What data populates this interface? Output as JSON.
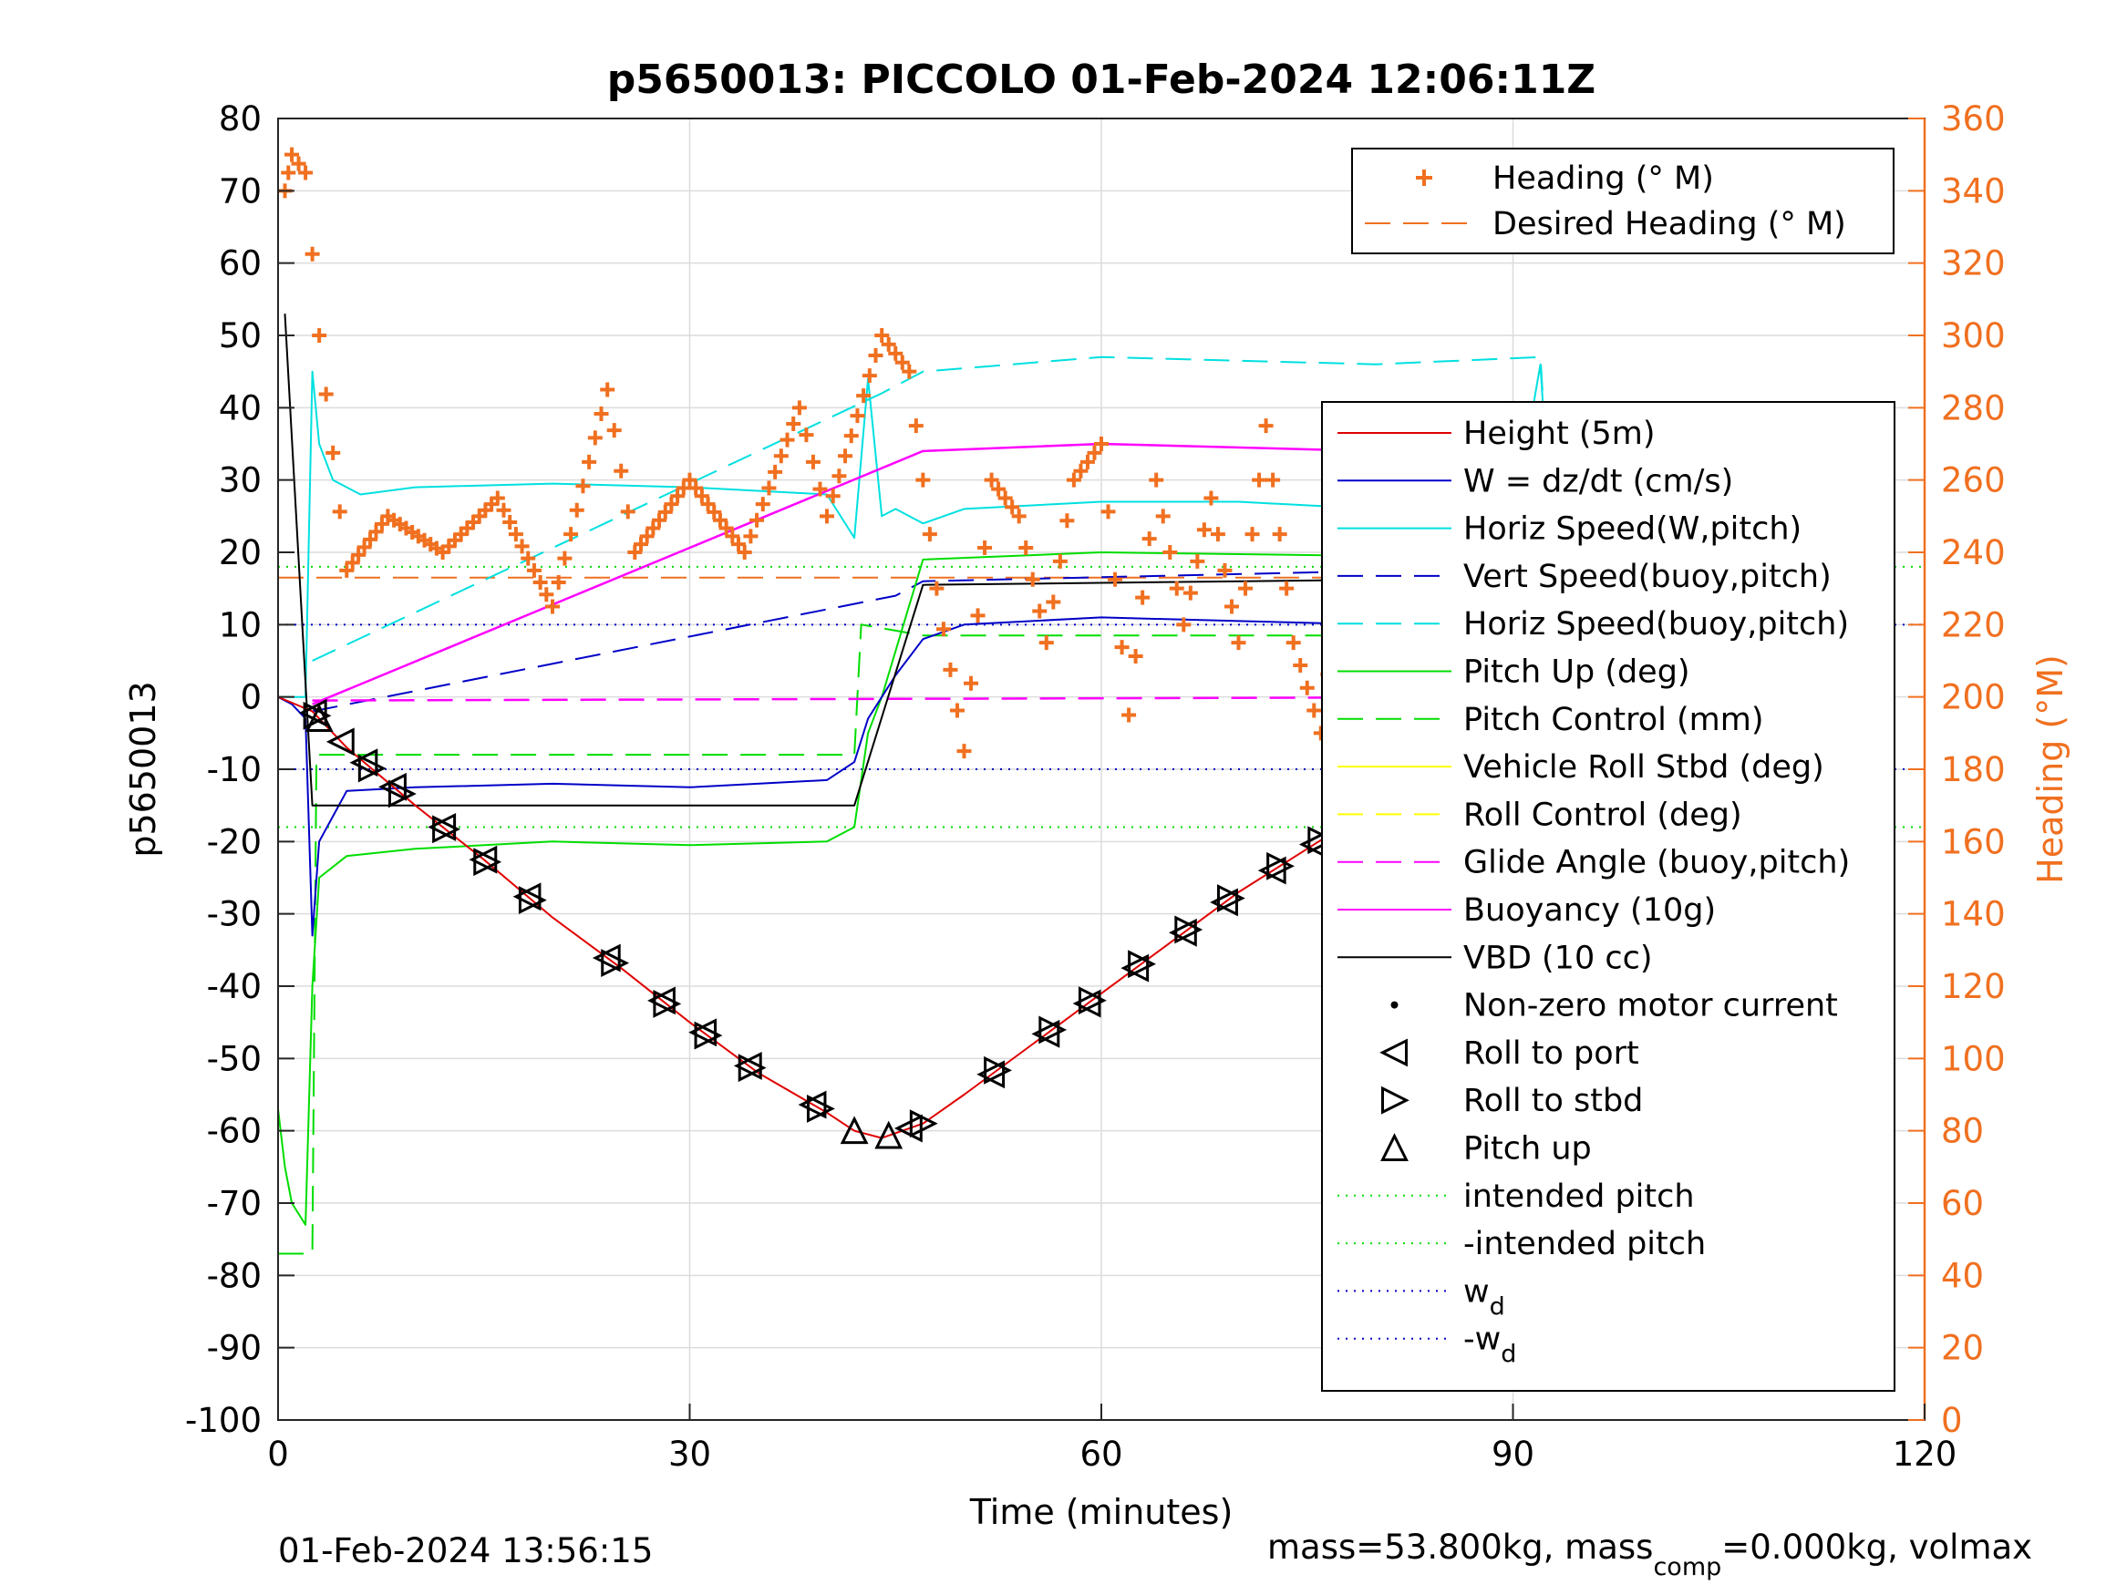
{
  "figure": {
    "title": "p5650013: PICCOLO 01-Feb-2024 12:06:11Z",
    "footer_left": "01-Feb-2024 13:56:15",
    "footer_right_parts": [
      "mass=53.800kg, mass",
      "comp",
      "=0.000kg, volmax"
    ]
  },
  "colors": {
    "heading": "#f07020",
    "height": "#e00000",
    "w": "#0000c8",
    "horiz_w": "#00e0e0",
    "vert_buoy": "#0000c8",
    "horiz_buoy": "#00e0e0",
    "pitch": "#00dd00",
    "pitch_control": "#00dd00",
    "roll": "#ffff00",
    "roll_control": "#ffff00",
    "glide": "#ff00ff",
    "buoyancy": "#ff00ff",
    "vbd": "#000000",
    "grid": "#dcdcdc"
  },
  "chart_data": {
    "type": "line",
    "xlabel": "Time (minutes)",
    "ylabel_left": "p5650013",
    "ylabel_right": "Heading (°M)",
    "xlim": [
      0,
      120
    ],
    "ylim_left": [
      -100,
      80
    ],
    "ylim_right": [
      0,
      360
    ],
    "xticks": [
      0,
      30,
      60,
      90,
      120
    ],
    "yticks_left": [
      80,
      70,
      60,
      50,
      40,
      30,
      20,
      10,
      0,
      -10,
      -20,
      -30,
      -40,
      -50,
      -60,
      -70,
      -80,
      -90,
      -100
    ],
    "yticks_right": [
      360,
      340,
      320,
      300,
      280,
      260,
      240,
      220,
      200,
      180,
      160,
      140,
      120,
      100,
      80,
      60,
      40,
      20,
      0
    ],
    "grid": true,
    "legend_heading": {
      "placement": "top-right",
      "entries": [
        "Heading (° M)",
        "Desired Heading (° M)"
      ]
    },
    "legend_main": {
      "placement": "right",
      "entries": [
        {
          "text": "Height (5m)",
          "key": "height",
          "style": "solid"
        },
        {
          "text": "W = dz/dt (cm/s)",
          "key": "w",
          "style": "solid"
        },
        {
          "text": "Horiz Speed(W,pitch)",
          "key": "horiz_w",
          "style": "solid"
        },
        {
          "text": "Vert Speed(buoy,pitch)",
          "key": "vert_buoy",
          "style": "dashed"
        },
        {
          "text": "Horiz Speed(buoy,pitch)",
          "key": "horiz_buoy",
          "style": "dashed"
        },
        {
          "text": "Pitch Up (deg)",
          "key": "pitch",
          "style": "solid"
        },
        {
          "text": "Pitch Control (mm)",
          "key": "pitch_control",
          "style": "dashed"
        },
        {
          "text": "Vehicle Roll Stbd (deg)",
          "key": "roll",
          "style": "solid"
        },
        {
          "text": "Roll Control (deg)",
          "key": "roll_control",
          "style": "dashed"
        },
        {
          "text": "Glide Angle (buoy,pitch)",
          "key": "glide",
          "style": "dashed"
        },
        {
          "text": "Buoyancy (10g)",
          "key": "buoyancy",
          "style": "solid"
        },
        {
          "text": "VBD (10 cc)",
          "key": "vbd",
          "style": "solid"
        },
        {
          "text": "Non-zero motor current",
          "key": "motor",
          "style": "dot"
        },
        {
          "text": "Roll to port",
          "key": "port",
          "style": "tri-left"
        },
        {
          "text": "Roll to stbd",
          "key": "stbd",
          "style": "tri-right"
        },
        {
          "text": "Pitch up",
          "key": "pitchup",
          "style": "tri-up"
        },
        {
          "text": "intended pitch",
          "key": "ip",
          "style": "dotted-green"
        },
        {
          "text": "-intended pitch",
          "key": "nip",
          "style": "dotted-green"
        },
        {
          "text": "w",
          "sub": "d",
          "key": "wd",
          "style": "dotted-blue"
        },
        {
          "text": "-w",
          "sub": "d",
          "key": "nwd",
          "style": "dotted-blue"
        }
      ]
    },
    "series": [
      {
        "name": "Height (5m)",
        "x": [
          0,
          2.5,
          5,
          10,
          15,
          20,
          25,
          30,
          35,
          40,
          42,
          44,
          47,
          50,
          55,
          60,
          65,
          70,
          75,
          80,
          85,
          90,
          93.5
        ],
        "y": [
          0,
          -2,
          -7,
          -15,
          -22.5,
          -30.5,
          -37.5,
          -45,
          -52,
          -57.5,
          -60,
          -61,
          -59,
          -55,
          -48,
          -41,
          -34,
          -27,
          -21,
          -15,
          -9,
          -3.5,
          0
        ]
      },
      {
        "name": "W = dz/dt (cm/s)",
        "x": [
          0,
          1,
          2,
          2.5,
          3,
          5,
          10,
          20,
          30,
          40,
          42,
          43,
          45,
          47,
          50,
          60,
          70,
          80,
          90,
          92,
          93.5
        ],
        "y": [
          0,
          -1,
          -3,
          -33,
          -20,
          -13,
          -12.5,
          -12,
          -12.5,
          -11.5,
          -9,
          -3,
          3,
          8,
          10,
          11,
          10.5,
          10,
          10,
          8,
          0
        ]
      },
      {
        "name": "Horiz Speed(W,pitch)",
        "x": [
          0,
          2,
          2.5,
          3,
          4,
          6,
          10,
          20,
          30,
          40,
          42,
          43,
          44,
          45,
          47,
          50,
          60,
          70,
          80,
          90,
          92,
          93.5
        ],
        "y": [
          0,
          0,
          45,
          35,
          30,
          28,
          29,
          29.5,
          29,
          28,
          22,
          44,
          25,
          26,
          24,
          26,
          27,
          27,
          26,
          24,
          46,
          0
        ]
      },
      {
        "name": "Vert Speed(buoy,pitch)",
        "x": [
          2.5,
          45,
          47,
          93.5
        ],
        "y": [
          -2,
          14,
          16,
          18
        ]
      },
      {
        "name": "Horiz Speed(buoy,pitch)",
        "x": [
          2.5,
          44,
          47,
          60,
          80,
          92,
          93.5
        ],
        "y": [
          5,
          42,
          45,
          47,
          46,
          47,
          0
        ]
      },
      {
        "name": "Pitch Up (deg)",
        "x": [
          0,
          0.5,
          1,
          2,
          2.5,
          3,
          5,
          10,
          20,
          30,
          40,
          42,
          43,
          44,
          47,
          60,
          80,
          90,
          92,
          93.5
        ],
        "y": [
          -57,
          -65,
          -70,
          -73,
          -40,
          -25,
          -22,
          -21,
          -20,
          -20.5,
          -20,
          -18,
          -5,
          0,
          19,
          20,
          19.5,
          18,
          12,
          0
        ]
      },
      {
        "name": "Pitch Control (mm)",
        "x": [
          0,
          2.5,
          2.8,
          42,
          42.5,
          47,
          93.5
        ],
        "y": [
          -77,
          -77,
          -8,
          -8,
          10,
          8.5,
          8.5
        ]
      },
      {
        "name": "Glide Angle (buoy,pitch)",
        "x": [
          2.5,
          93.5
        ],
        "y": [
          -0.5,
          0
        ]
      },
      {
        "name": "Buoyancy (10g)",
        "x": [
          2.5,
          47,
          60,
          90,
          92,
          93.5
        ],
        "y": [
          -1,
          34,
          35,
          33.5,
          29.5,
          36
        ]
      },
      {
        "name": "VBD (10 cc)",
        "x": [
          0.5,
          2.5,
          2.6,
          42,
          47,
          93.5
        ],
        "y": [
          53,
          -15,
          -15,
          -15,
          15.5,
          16.5
        ]
      },
      {
        "name": "Heading (° M)",
        "axis": "right",
        "x": [
          0.5,
          1,
          2,
          3,
          5,
          8,
          12,
          16,
          20,
          24,
          26,
          30,
          34,
          38,
          40,
          44,
          46,
          48,
          50,
          52,
          54,
          56,
          58,
          60,
          62,
          64,
          66,
          68,
          70,
          72,
          74,
          76,
          78,
          80,
          82,
          84,
          86,
          88,
          90,
          91.5
        ],
        "y": [
          340,
          350,
          345,
          300,
          235,
          250,
          240,
          255,
          225,
          285,
          240,
          260,
          240,
          280,
          250,
          300,
          290,
          230,
          185,
          260,
          250,
          215,
          260,
          270,
          195,
          260,
          220,
          255,
          215,
          275,
          215,
          190,
          255,
          240,
          250,
          210,
          265,
          220,
          145,
          270
        ]
      },
      {
        "name": "Desired Heading (° M)",
        "axis": "right",
        "x": [
          0,
          93.5
        ],
        "y": [
          233,
          233
        ]
      }
    ],
    "constants": [
      {
        "name": "intended pitch",
        "y": 18
      },
      {
        "name": "-intended pitch",
        "y": -18
      },
      {
        "name": "wd",
        "y": 10
      },
      {
        "name": "-wd",
        "y": -10
      }
    ],
    "markers": {
      "roll_to_port": [
        2.6,
        4.6,
        6.3,
        8.4,
        12,
        15,
        18.2,
        24,
        28,
        31,
        34.3,
        39,
        46,
        52,
        56,
        59,
        62.5,
        66,
        69,
        72.5,
        75.5,
        79,
        81.5,
        83.5,
        85,
        86.5,
        88,
        89.3,
        90.5,
        92
      ],
      "roll_to_stbd": [
        2.8,
        6.8,
        9,
        12.2,
        15.2,
        18.5,
        24.5,
        28.3,
        31.3,
        34.5,
        39.5,
        47,
        52.4,
        56.4,
        59.3,
        62.9,
        66.3,
        69.4,
        73,
        76,
        79.4,
        82,
        84,
        85.5,
        87,
        88.5,
        89.8,
        91
      ],
      "pitch_up": [
        3,
        42,
        44.5
      ]
    }
  }
}
